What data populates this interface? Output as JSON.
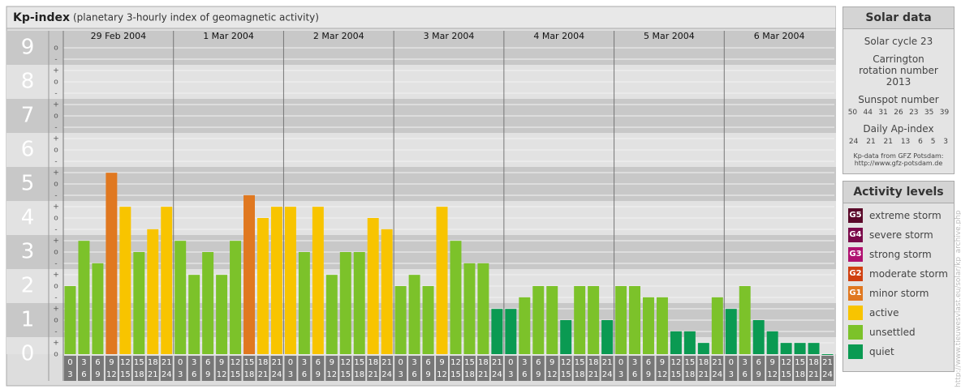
{
  "chart_data": {
    "type": "bar",
    "title": "Kp-index",
    "subtitle": "(planetary 3-hourly index of geomagnetic activity)",
    "days": [
      "29 Feb 2004",
      "1 Mar 2004",
      "2 Mar 2004",
      "3 Mar 2004",
      "4 Mar 2004",
      "5 Mar 2004",
      "6 Mar 2004"
    ],
    "hour_labels": [
      [
        "0",
        "3"
      ],
      [
        "3",
        "6"
      ],
      [
        "6",
        "9"
      ],
      [
        "9",
        "12"
      ],
      [
        "12",
        "15"
      ],
      [
        "15",
        "18"
      ],
      [
        "18",
        "21"
      ],
      [
        "21",
        "24"
      ]
    ],
    "values": [
      2,
      3.33,
      2.67,
      5.33,
      4.33,
      3,
      3.67,
      4.33,
      3.33,
      2.33,
      3,
      2.33,
      3.33,
      4.67,
      4,
      4.33,
      4.33,
      3,
      4.33,
      2.33,
      3,
      3,
      4,
      3.67,
      2,
      2.33,
      2,
      4.33,
      3.33,
      2.67,
      2.67,
      1.33,
      1.33,
      1.67,
      2,
      2,
      1,
      2,
      2,
      1,
      2,
      2,
      1.67,
      1.67,
      0.67,
      0.67,
      0.33,
      1.67,
      1.33,
      2,
      1,
      0.67,
      0.33,
      0.33,
      0.33,
      0
    ],
    "colors": [
      "#7cc22a",
      "#7cc22a",
      "#7cc22a",
      "#e07820",
      "#f8c400",
      "#7cc22a",
      "#f8c400",
      "#f8c400",
      "#7cc22a",
      "#7cc22a",
      "#7cc22a",
      "#7cc22a",
      "#7cc22a",
      "#e07820",
      "#f8c400",
      "#f8c400",
      "#f8c400",
      "#7cc22a",
      "#f8c400",
      "#7cc22a",
      "#7cc22a",
      "#7cc22a",
      "#f8c400",
      "#f8c400",
      "#7cc22a",
      "#7cc22a",
      "#7cc22a",
      "#f8c400",
      "#7cc22a",
      "#7cc22a",
      "#7cc22a",
      "#0a9a52",
      "#0a9a52",
      "#7cc22a",
      "#7cc22a",
      "#7cc22a",
      "#0a9a52",
      "#7cc22a",
      "#7cc22a",
      "#0a9a52",
      "#7cc22a",
      "#7cc22a",
      "#7cc22a",
      "#7cc22a",
      "#0a9a52",
      "#0a9a52",
      "#0a9a52",
      "#7cc22a",
      "#0a9a52",
      "#7cc22a",
      "#0a9a52",
      "#0a9a52",
      "#0a9a52",
      "#0a9a52",
      "#0a9a52",
      "#0a9a52"
    ],
    "ylim": [
      0,
      9.5
    ],
    "yticks": [
      0,
      1,
      2,
      3,
      4,
      5,
      6,
      7,
      8,
      9
    ],
    "minor_labels": [
      "-",
      "o",
      "+"
    ]
  },
  "solar": {
    "title": "Solar data",
    "cycle": "Solar cycle 23",
    "carrington": "Carrington rotation number 2013",
    "sunspot_title": "Sunspot number",
    "sunspot": [
      "50",
      "44",
      "31",
      "26",
      "23",
      "35",
      "39"
    ],
    "ap_title": "Daily Ap-index",
    "ap": [
      "24",
      "21",
      "21",
      "13",
      "6",
      "5",
      "3"
    ],
    "credit": "Kp-data from GFZ Potsdam:",
    "credit_url": "http://www.gfz-potsdam.de"
  },
  "legend": {
    "title": "Activity levels",
    "items": [
      {
        "badge": "G5",
        "label": "extreme storm",
        "color": "#5a0a2a"
      },
      {
        "badge": "G4",
        "label": "severe storm",
        "color": "#7a0a4a"
      },
      {
        "badge": "G3",
        "label": "strong storm",
        "color": "#b01070"
      },
      {
        "badge": "G2",
        "label": "moderate storm",
        "color": "#d04010"
      },
      {
        "badge": "G1",
        "label": "minor storm",
        "color": "#e07820"
      },
      {
        "badge": "",
        "label": "active",
        "color": "#f8c400"
      },
      {
        "badge": "",
        "label": "unsettled",
        "color": "#7cc22a"
      },
      {
        "badge": "",
        "label": "quiet",
        "color": "#0a9a52"
      }
    ]
  },
  "vertical_text": "http://www.tieuwesvlast.eu/solar/kp_archive.php"
}
